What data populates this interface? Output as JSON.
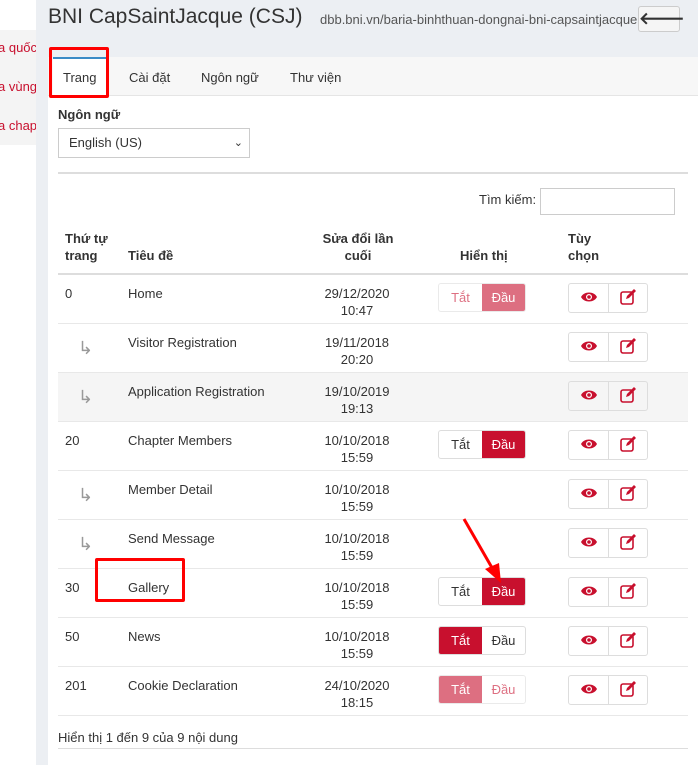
{
  "sidebar": {
    "items": [
      "a quốc",
      "a vùng",
      "a chap"
    ]
  },
  "header": {
    "title": "BNI CapSaintJacque (CSJ)",
    "url": "dbb.bni.vn/baria-binhthuan-dongnai-bni-capsaintjacque",
    "back_icon": "arrow-left-icon"
  },
  "tabs": [
    {
      "label": "Trang",
      "active": true
    },
    {
      "label": "Cài đặt"
    },
    {
      "label": "Ngôn ngữ"
    },
    {
      "label": "Thư viện"
    }
  ],
  "language": {
    "label": "Ngôn ngữ",
    "value": "English (US)"
  },
  "search": {
    "label": "Tìm kiếm:",
    "value": ""
  },
  "table": {
    "headers": {
      "order": "Thứ tự trang",
      "title": "Tiêu đề",
      "modified": "Sửa đổi lần cuối",
      "display": "Hiển thị",
      "options": "Tùy chọn"
    },
    "toggle_labels": {
      "off": "Tắt",
      "on": "Đầu"
    },
    "rows": [
      {
        "order": "0",
        "title": "Home",
        "date": "29/12/2020",
        "time": "10:47",
        "display": "on",
        "disabled": true
      },
      {
        "order": "",
        "child": true,
        "title": "Visitor Registration",
        "date": "19/11/2018",
        "time": "20:20"
      },
      {
        "order": "",
        "child": true,
        "title": "Application Registration",
        "date": "19/10/2019",
        "time": "19:13"
      },
      {
        "order": "20",
        "title": "Chapter Members",
        "date": "10/10/2018",
        "time": "15:59",
        "display": "on"
      },
      {
        "order": "",
        "child": true,
        "title": "Member Detail",
        "date": "10/10/2018",
        "time": "15:59"
      },
      {
        "order": "",
        "child": true,
        "title": "Send Message",
        "date": "10/10/2018",
        "time": "15:59"
      },
      {
        "order": "30",
        "title": "Gallery",
        "date": "10/10/2018",
        "time": "15:59",
        "display": "on"
      },
      {
        "order": "50",
        "title": "News",
        "date": "10/10/2018",
        "time": "15:59",
        "display": "off"
      },
      {
        "order": "201",
        "title": "Cookie Declaration",
        "date": "24/10/2020",
        "time": "18:15",
        "display": "off",
        "disabled": true
      }
    ]
  },
  "footer": "Hiển thị 1 đến 9 của 9 nội dung",
  "colors": {
    "accent": "#c8102e",
    "tab_indicator": "#3b8bc6",
    "annotation": "#ff0000"
  }
}
